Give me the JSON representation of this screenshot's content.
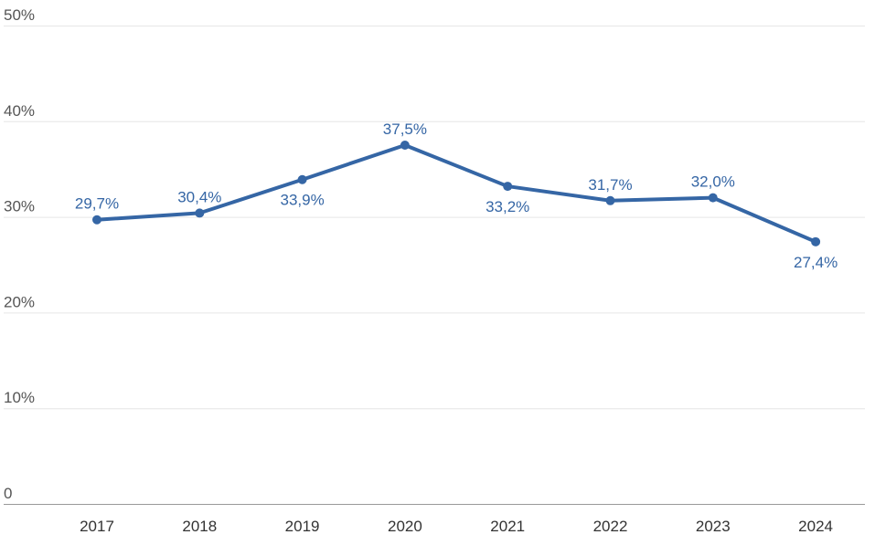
{
  "chart_data": {
    "type": "line",
    "x": [
      "2017",
      "2018",
      "2019",
      "2020",
      "2021",
      "2022",
      "2023",
      "2024"
    ],
    "series": [
      {
        "values": [
          29.7,
          30.4,
          33.9,
          37.5,
          33.2,
          31.7,
          32.0,
          27.4
        ],
        "labels": [
          "29,7%",
          "30,4%",
          "33,9%",
          "37,5%",
          "33,2%",
          "31,7%",
          "32,0%",
          "27,4%"
        ],
        "label_positions": [
          "above",
          "above",
          "below",
          "above",
          "below",
          "above",
          "above",
          "below"
        ]
      }
    ],
    "yticks": [
      0,
      10,
      20,
      30,
      40,
      50
    ],
    "ytick_labels": [
      "0",
      "10%",
      "20%",
      "30%",
      "40%",
      "50%"
    ],
    "ylim": [
      0,
      50
    ],
    "title": "",
    "xlabel": "",
    "ylabel": "",
    "grid": true,
    "legend": "none",
    "colors": {
      "line": "#3566a5",
      "grid": "#e6e6e6",
      "baseline": "#999999"
    }
  }
}
